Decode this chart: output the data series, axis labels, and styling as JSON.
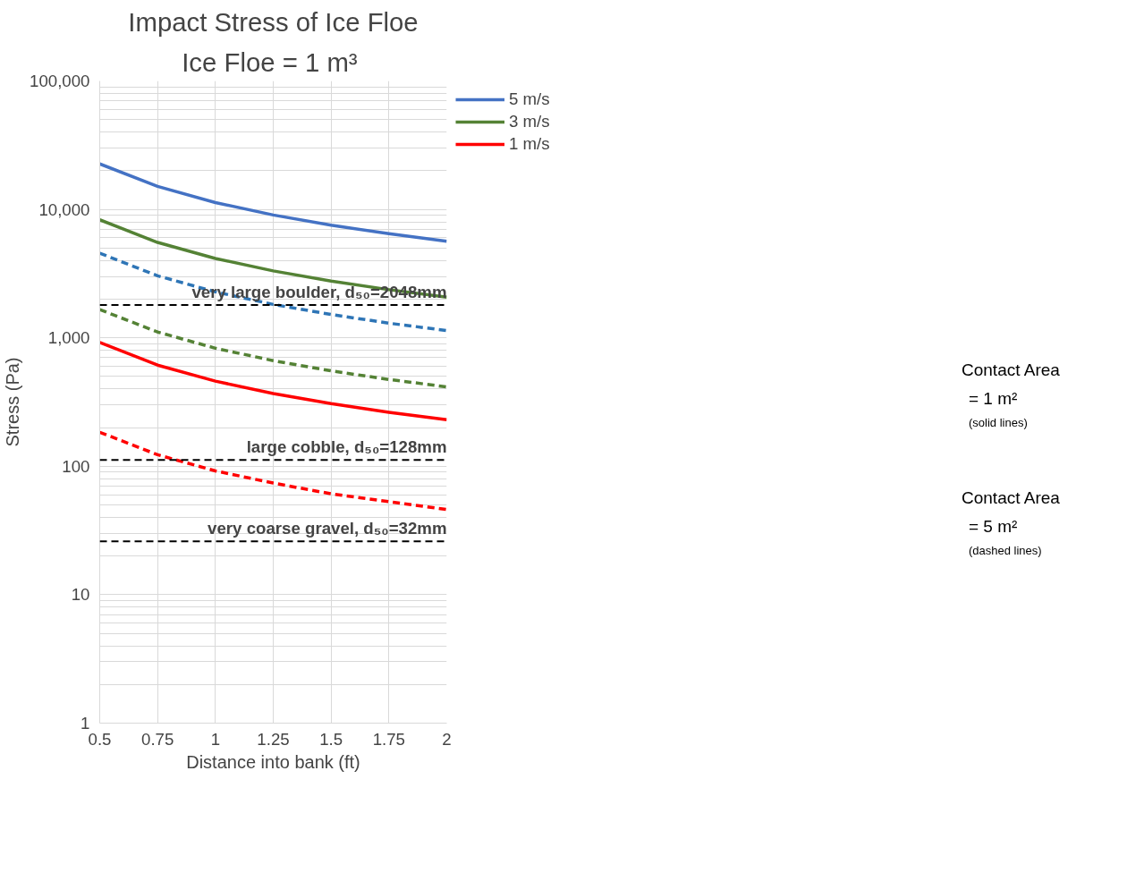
{
  "chart_data": {
    "type": "line",
    "title": "Impact Stress of Ice Floe",
    "subtitle": "Ice Floe =  1 m³",
    "xlabel": "Distance into bank (ft)",
    "ylabel": "Stress (Pa)",
    "x": [
      0.5,
      0.75,
      1,
      1.25,
      1.5,
      1.75,
      2
    ],
    "series": [
      {
        "name": "5 m/s",
        "color": "#4472c4",
        "line_style": "solid",
        "values": [
          22600,
          15100,
          11300,
          9040,
          7530,
          6460,
          5650
        ]
      },
      {
        "name": "3 m/s",
        "color": "#548235",
        "line_style": "solid",
        "values": [
          8300,
          5530,
          4150,
          3320,
          2770,
          2370,
          2070
        ]
      },
      {
        "name": "1 m/s",
        "color": "#ff0000",
        "line_style": "solid",
        "values": [
          920,
          613,
          460,
          368,
          307,
          263,
          230
        ]
      },
      {
        "color": "#2e75b6",
        "line_style": "dashed",
        "values": [
          4560,
          3040,
          2280,
          1820,
          1520,
          1300,
          1140
        ]
      },
      {
        "color": "#548235",
        "line_style": "dashed",
        "values": [
          1660,
          1110,
          830,
          664,
          553,
          474,
          415
        ]
      },
      {
        "color": "#ff0000",
        "line_style": "dashed",
        "values": [
          184,
          123,
          92,
          74,
          61,
          53,
          46
        ]
      }
    ],
    "log": "y",
    "xlim": [
      0.5,
      2
    ],
    "ylim": [
      1,
      100000
    ],
    "xticks": [
      0.5,
      0.75,
      1,
      1.25,
      1.5,
      1.75,
      2
    ],
    "yticks": [
      {
        "value": 1,
        "label": "1"
      },
      {
        "value": 10,
        "label": "10"
      },
      {
        "value": 100,
        "label": "100"
      },
      {
        "value": 1000,
        "label": "1,000"
      },
      {
        "value": 10000,
        "label": "10,000"
      },
      {
        "value": 100000,
        "label": "100,000"
      }
    ],
    "grid": true,
    "legend": "top right",
    "ref_lines": [
      {
        "axis": "y",
        "value": 1800,
        "color": "#000000",
        "line_style": "dashed"
      },
      {
        "axis": "y",
        "value": 112,
        "color": "#000000",
        "line_style": "dashed"
      },
      {
        "axis": "y",
        "value": 26,
        "color": "#000000",
        "line_style": "dashed"
      }
    ],
    "annotations": [
      {
        "text": "very large boulder, d₅₀=2048mm",
        "y": 1800
      },
      {
        "text": "large cobble, d₅₀=128mm",
        "y": 112
      },
      {
        "text": "very coarse gravel, d₅₀=32mm",
        "y": 26
      },
      "Contact Area",
      "= 1 m²",
      "(solid lines)",
      "Contact Area",
      "= 5 m²",
      "(dashed lines)"
    ]
  }
}
